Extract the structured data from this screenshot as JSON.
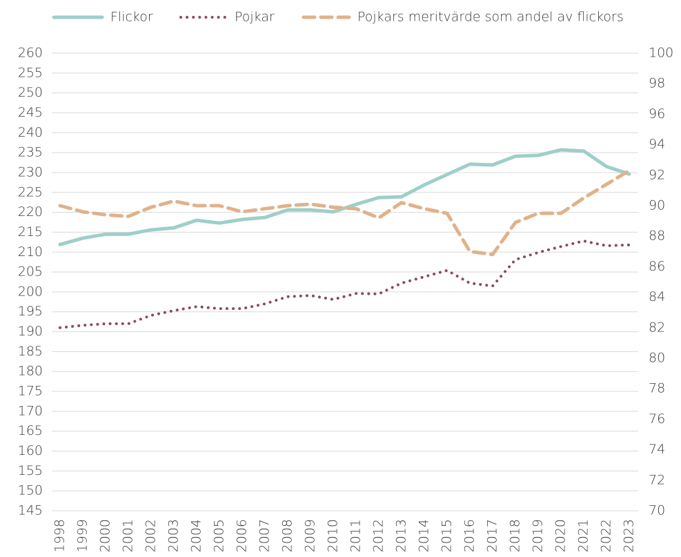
{
  "chart_data": {
    "type": "line",
    "categories": [
      "1998",
      "1999",
      "2000",
      "2001",
      "2002",
      "2003",
      "2004",
      "2005",
      "2006",
      "2007",
      "2008",
      "2009",
      "2010",
      "2011",
      "2012",
      "2013",
      "2014",
      "2015",
      "2016",
      "2017",
      "2018",
      "2019",
      "2020",
      "2021",
      "2022",
      "2023"
    ],
    "series": [
      {
        "name": "Flickor",
        "color": "#9ecfca",
        "style": "solid",
        "axis": "y",
        "values": [
          211.9,
          213.5,
          214.5,
          214.5,
          215.6,
          216.1,
          218,
          217.3,
          218.2,
          218.7,
          220.6,
          220.6,
          220.1,
          222,
          223.7,
          223.9,
          226.9,
          229.5,
          232.1,
          231.9,
          234.1,
          234.3,
          235.7,
          235.4,
          231.5,
          229.6
        ]
      },
      {
        "name": "Pojkar",
        "color": "#8b4a62",
        "style": "dotted",
        "axis": "y",
        "values": [
          191,
          191.6,
          192,
          192,
          194.1,
          195.3,
          196.3,
          195.8,
          195.8,
          197,
          198.8,
          199.1,
          198.1,
          199.6,
          199.5,
          202.2,
          203.8,
          205.4,
          202.2,
          201.5,
          208.1,
          209.9,
          211.4,
          212.8,
          211.6,
          211.8
        ]
      },
      {
        "name": "Pojkars meritvärde som andel av flickors",
        "color": "#e0b28a",
        "style": "dashed",
        "axis": "y2",
        "values": [
          90.0,
          89.6,
          89.4,
          89.3,
          89.9,
          90.3,
          90.0,
          90.0,
          89.6,
          89.8,
          90.0,
          90.1,
          89.9,
          89.8,
          89.2,
          90.2,
          89.8,
          89.5,
          87.0,
          86.8,
          88.9,
          89.5,
          89.5,
          90.5,
          91.4,
          92.3
        ]
      }
    ],
    "ylim": [
      145,
      260
    ],
    "yticks": [
      145,
      150,
      155,
      160,
      165,
      170,
      175,
      180,
      185,
      190,
      195,
      200,
      205,
      210,
      215,
      220,
      225,
      230,
      235,
      240,
      245,
      250,
      255,
      260
    ],
    "y2lim": [
      70,
      100
    ],
    "y2ticks": [
      70,
      72,
      74,
      76,
      78,
      80,
      82,
      84,
      86,
      88,
      90,
      92,
      94,
      96,
      98,
      100
    ],
    "grid": true,
    "legend": "top"
  }
}
